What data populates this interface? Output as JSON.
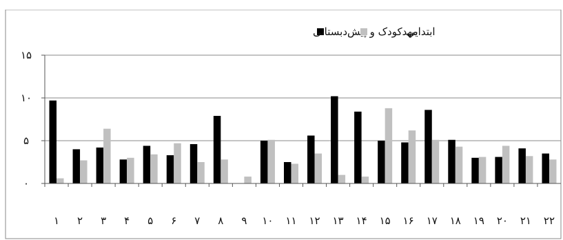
{
  "chart_data": {
    "type": "bar",
    "title": "",
    "xlabel": "",
    "ylabel": "",
    "ylim": [
      0,
      15
    ],
    "yticks": [
      0,
      5,
      10,
      15
    ],
    "ytick_labels": [
      "۰",
      "۵",
      "۱۰",
      "۱۵"
    ],
    "grid": "horizontal",
    "legend_position": "top-center",
    "categories": [
      "۱",
      "۲",
      "۳",
      "۴",
      "۵",
      "۶",
      "۷",
      "۸",
      "۹",
      "۱۰",
      "۱۱",
      "۱۲",
      "۱۳",
      "۱۴",
      "۱۵",
      "۱۶",
      "۱۷",
      "۱۸",
      "۱۹",
      "۲۰",
      "۲۱",
      "۲۲"
    ],
    "series": [
      {
        "name": "مهدکودک و پیش‌دبستانی",
        "color": "#000000",
        "values": [
          9.7,
          4.0,
          4.2,
          2.8,
          4.4,
          3.3,
          4.6,
          7.9,
          0,
          5.0,
          2.5,
          5.6,
          10.2,
          8.4,
          5.0,
          4.8,
          8.6,
          5.1,
          3.0,
          3.1,
          4.1,
          3.5
        ]
      },
      {
        "name": "ابتدایی",
        "color": "#c0c0c0",
        "values": [
          0.6,
          2.7,
          6.4,
          3.0,
          3.4,
          4.7,
          2.5,
          2.8,
          0.8,
          5.1,
          2.3,
          3.5,
          1.0,
          0.8,
          8.8,
          6.2,
          5.1,
          4.3,
          3.1,
          4.4,
          3.2,
          2.8
        ]
      }
    ]
  }
}
